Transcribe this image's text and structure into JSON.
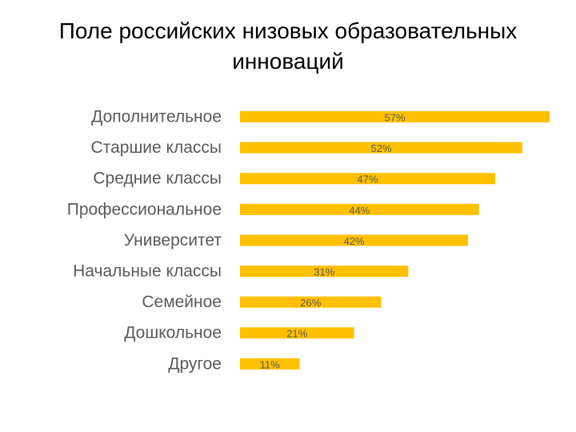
{
  "slide": {
    "title": "Поле российских низовых образовательных инноваций"
  },
  "chart_data": {
    "type": "bar",
    "orientation": "horizontal",
    "title": "",
    "xlabel": "",
    "ylabel": "",
    "categories": [
      "Дополнительное",
      "Старшие классы",
      "Средние классы",
      "Профессиональное",
      "Университет",
      "Начальные классы",
      "Семейное",
      "Дошкольное",
      "Другое"
    ],
    "values": [
      57,
      52,
      47,
      44,
      42,
      31,
      26,
      21,
      11
    ],
    "value_labels": [
      "57%",
      "52%",
      "47%",
      "44%",
      "42%",
      "31%",
      "26%",
      "21%",
      "11%"
    ],
    "unit": "%",
    "xlim": [
      0,
      57
    ],
    "grid": false,
    "legend": "none",
    "bar_color": "#FFC000"
  }
}
